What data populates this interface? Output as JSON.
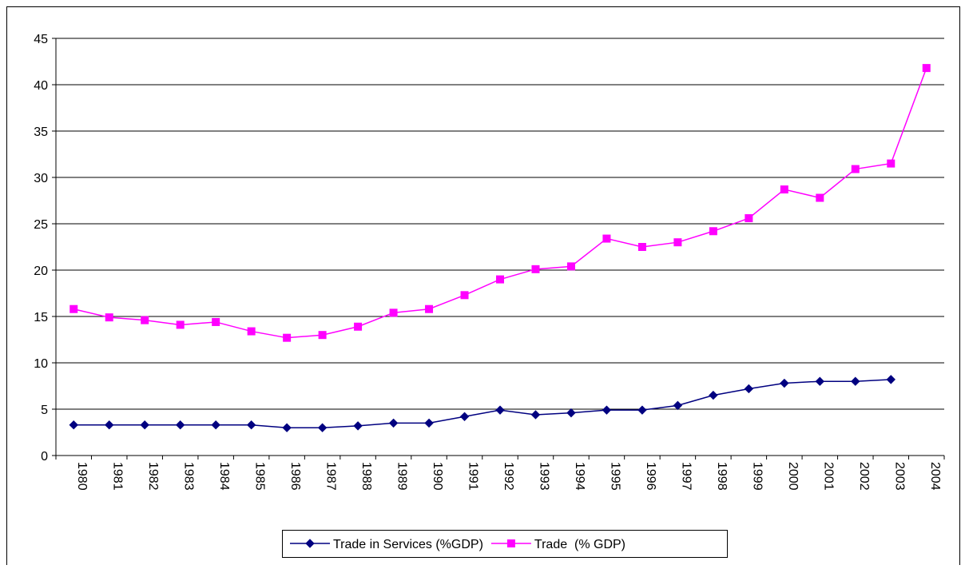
{
  "chart_data": {
    "type": "line",
    "categories": [
      "1980",
      "1981",
      "1982",
      "1983",
      "1984",
      "1985",
      "1986",
      "1987",
      "1988",
      "1989",
      "1990",
      "1991",
      "1992",
      "1993",
      "1994",
      "1995",
      "1996",
      "1997",
      "1998",
      "1999",
      "2000",
      "2001",
      "2002",
      "2003",
      "2004"
    ],
    "series": [
      {
        "name": "Trade in Services (%GDP)",
        "color": "#000080",
        "marker": "diamond",
        "values": [
          3.3,
          3.3,
          3.3,
          3.3,
          3.3,
          3.3,
          3.0,
          3.0,
          3.2,
          3.5,
          3.5,
          4.2,
          4.9,
          4.4,
          4.6,
          4.9,
          4.9,
          5.4,
          6.5,
          7.2,
          7.8,
          8.0,
          8.0,
          8.2,
          null
        ]
      },
      {
        "name": "Trade  (% GDP)",
        "color": "#ff00ff",
        "marker": "square",
        "values": [
          15.8,
          14.9,
          14.6,
          14.1,
          14.4,
          13.4,
          12.7,
          13.0,
          13.9,
          15.4,
          15.8,
          17.3,
          19.0,
          20.1,
          20.4,
          23.4,
          22.5,
          23.0,
          24.2,
          25.6,
          28.7,
          27.8,
          30.9,
          31.5,
          41.8
        ]
      }
    ],
    "ylim": [
      0,
      45
    ],
    "yticks": [
      0,
      5,
      10,
      15,
      20,
      25,
      30,
      35,
      40,
      45
    ],
    "grid": true,
    "legend": "bottom"
  }
}
